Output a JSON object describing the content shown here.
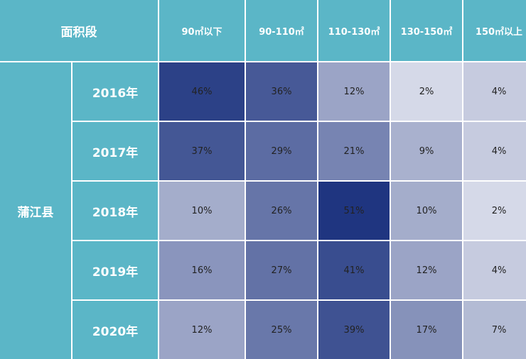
{
  "header_label": "面积段",
  "county": "蒲江县",
  "colors": {
    "header": "#5bb6c7",
    "low": "#f4f5f9",
    "high": "#1f3580"
  },
  "chart_data": {
    "type": "heatmap",
    "title": "",
    "columns": [
      "90㎡以下",
      "90-110㎡",
      "110-130㎡",
      "130-150㎡",
      "150㎡以上"
    ],
    "rows": [
      "2016年",
      "2017年",
      "2018年",
      "2019年",
      "2020年"
    ],
    "values": [
      [
        46,
        36,
        12,
        2,
        4
      ],
      [
        37,
        29,
        21,
        9,
        4
      ],
      [
        10,
        26,
        51,
        10,
        2
      ],
      [
        16,
        27,
        41,
        12,
        4
      ],
      [
        12,
        25,
        39,
        17,
        7
      ]
    ],
    "unit": "%"
  }
}
